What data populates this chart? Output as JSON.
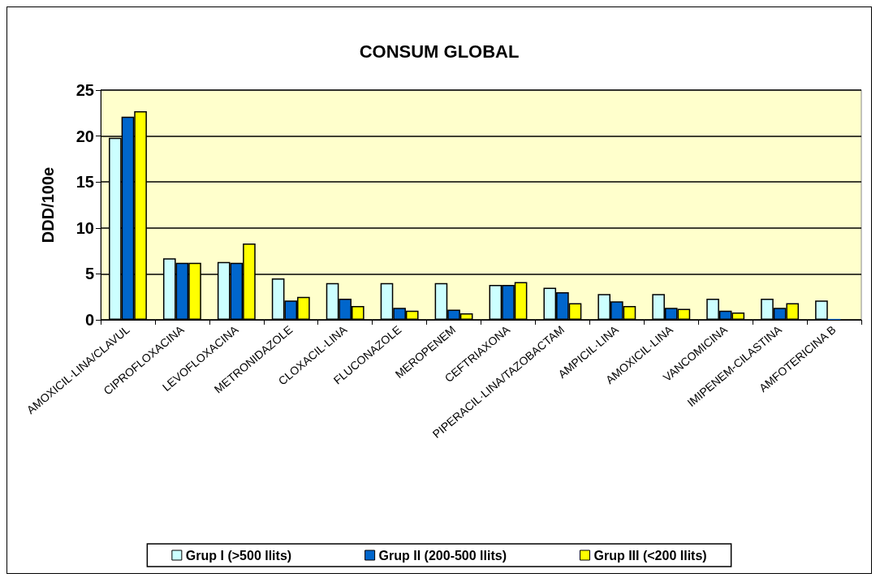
{
  "chart_data": {
    "type": "bar",
    "title": "CONSUM GLOBAL",
    "ylabel": "DDD/100e",
    "categories": [
      "AMOXICIL·LINA/CLAVUL",
      "CIPROFLOXACINA",
      "LEVOFLOXACINA",
      "METRONIDAZOLE",
      "CLOXACIL·LINA",
      "FLUCONAZOLE",
      "MEROPENEM",
      "CEFTRIAXONA",
      "PIPERACIL·LINA/TAZOBACTAM",
      "AMPICIL·LINA",
      "AMOXICIL·LINA",
      "VANCOMICINA",
      "IMIPENEM-CILASTINA",
      "AMFOTERICINA B"
    ],
    "series": [
      {
        "name": "Grup I (>500 llits)",
        "color": "#ccffff",
        "values": [
          19.8,
          6.7,
          6.3,
          4.5,
          4.0,
          4.0,
          4.0,
          3.8,
          3.5,
          2.8,
          2.8,
          2.3,
          2.3,
          2.1
        ]
      },
      {
        "name": "Grup II (200-500 llits)",
        "color": "#0066cc",
        "values": [
          22.1,
          6.2,
          6.2,
          2.1,
          2.3,
          1.3,
          1.1,
          3.8,
          3.0,
          2.0,
          1.3,
          1.0,
          1.3,
          0.1
        ]
      },
      {
        "name": "Grup III (<200 llits)",
        "color": "#ffff00",
        "values": [
          22.7,
          6.2,
          8.3,
          2.5,
          1.5,
          1.0,
          0.7,
          4.1,
          1.8,
          1.5,
          1.2,
          0.8,
          1.8,
          null
        ]
      }
    ],
    "ylim": [
      0,
      25
    ],
    "yticks": [
      0,
      5,
      10,
      15,
      20,
      25
    ],
    "grid": "y",
    "legend": "bottom"
  }
}
